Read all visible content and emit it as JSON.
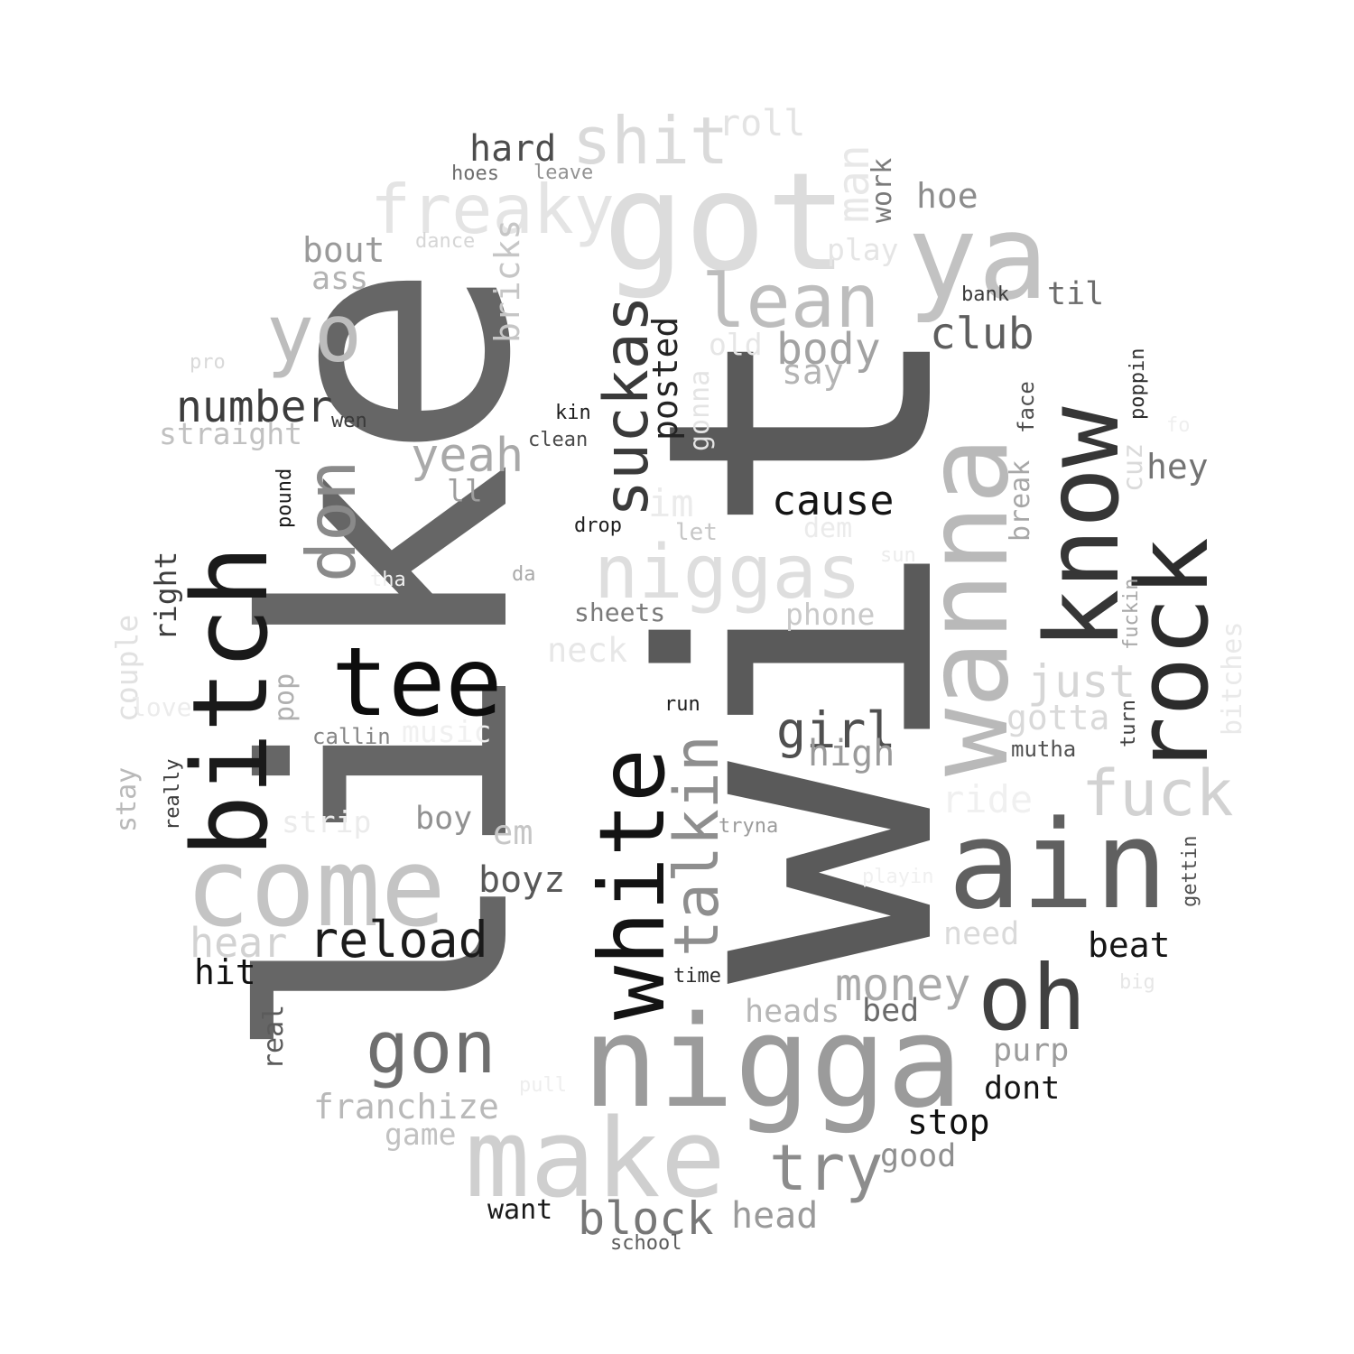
{
  "words": [
    {
      "text": "like",
      "color": "#666666"
    },
    {
      "text": "wit",
      "color": "#5a5a5a"
    },
    {
      "text": "got",
      "color": "#dcdcdc"
    },
    {
      "text": "ya",
      "color": "#c2c2c2"
    },
    {
      "text": "wanna",
      "color": "#b9b9b9"
    },
    {
      "text": "know",
      "color": "#363636"
    },
    {
      "text": "rock",
      "color": "#2c2c2c"
    },
    {
      "text": "ain",
      "color": "#606060"
    },
    {
      "text": "nigga",
      "color": "#9b9b9b"
    },
    {
      "text": "make",
      "color": "#cfcfcf"
    },
    {
      "text": "come",
      "color": "#c4c4c4"
    },
    {
      "text": "bitch",
      "color": "#1a1a1a"
    },
    {
      "text": "white",
      "color": "#131313"
    },
    {
      "text": "tee",
      "color": "#0d0d0d"
    },
    {
      "text": "niggas",
      "color": "#dedede"
    },
    {
      "text": "freaky",
      "color": "#e4e4e4"
    },
    {
      "text": "shit",
      "color": "#dadada"
    },
    {
      "text": "lean",
      "color": "#bdbdbd"
    },
    {
      "text": "yo",
      "color": "#bdbdbd"
    },
    {
      "text": "don",
      "color": "#8a8a8a"
    },
    {
      "text": "suckas",
      "color": "#3a3a3a"
    },
    {
      "text": "oh",
      "color": "#414141"
    },
    {
      "text": "fuck",
      "color": "#d2d2d2"
    },
    {
      "text": "gon",
      "color": "#6e6e6e"
    },
    {
      "text": "talkin",
      "color": "#8e8e8e"
    },
    {
      "text": "reload",
      "color": "#1b1b1b"
    },
    {
      "text": "try",
      "color": "#8c8c8c"
    },
    {
      "text": "block",
      "color": "#777777"
    },
    {
      "text": "number",
      "color": "#3c3c3c"
    },
    {
      "text": "cause",
      "color": "#141414"
    },
    {
      "text": "club",
      "color": "#5e5e5e"
    },
    {
      "text": "body",
      "color": "#a2a2a2"
    },
    {
      "text": "yeah",
      "color": "#a9a9a9"
    },
    {
      "text": "girl",
      "color": "#4f4f4f"
    },
    {
      "text": "money",
      "color": "#a9a9a9"
    },
    {
      "text": "just",
      "color": "#d6d6d6"
    },
    {
      "text": "hard",
      "color": "#4c4c4c"
    },
    {
      "text": "roll",
      "color": "#e3e3e3"
    },
    {
      "text": "man",
      "color": "#e8e8e8"
    },
    {
      "text": "work",
      "color": "#7a7a7a"
    },
    {
      "text": "hoe",
      "color": "#8c8c8c"
    },
    {
      "text": "bout",
      "color": "#9a9a9a"
    },
    {
      "text": "ass",
      "color": "#b3b3b3"
    },
    {
      "text": "play",
      "color": "#e5e5e5"
    },
    {
      "text": "bricks",
      "color": "#c6c6c6"
    },
    {
      "text": "posted",
      "color": "#242424"
    },
    {
      "text": "til",
      "color": "#6c6c6c"
    },
    {
      "text": "bank",
      "color": "#3b3b3b"
    },
    {
      "text": "old",
      "color": "#e6e6e6"
    },
    {
      "text": "say",
      "color": "#b4b4b4"
    },
    {
      "text": "gonna",
      "color": "#e4e4e4"
    },
    {
      "text": "poppin",
      "color": "#2d2d2d"
    },
    {
      "text": "face",
      "color": "#4d4d4d"
    },
    {
      "text": "cuz",
      "color": "#dadada"
    },
    {
      "text": "hey",
      "color": "#737373"
    },
    {
      "text": "break",
      "color": "#a7a7a7"
    },
    {
      "text": "kin",
      "color": "#1d1d1d"
    },
    {
      "text": "clean",
      "color": "#4a4a4a"
    },
    {
      "text": "wen",
      "color": "#3a3a3a"
    },
    {
      "text": "straight",
      "color": "#c1c1c1"
    },
    {
      "text": "pro",
      "color": "#d9d9d9"
    },
    {
      "text": "ll",
      "color": "#9e9e9e"
    },
    {
      "text": "im",
      "color": "#ebebeb"
    },
    {
      "text": "drop",
      "color": "#202020"
    },
    {
      "text": "let",
      "color": "#c7c7c7"
    },
    {
      "text": "dem",
      "color": "#ebebeb"
    },
    {
      "text": "pound",
      "color": "#1b1b1b"
    },
    {
      "text": "right",
      "color": "#3e3e3e"
    },
    {
      "text": "couple",
      "color": "#e1e1e1"
    },
    {
      "text": "tha",
      "color": "#f0f0f0"
    },
    {
      "text": "da",
      "color": "#aaaaaa"
    },
    {
      "text": "sun",
      "color": "#ececec"
    },
    {
      "text": "fo",
      "color": "#efefef"
    },
    {
      "text": "sheets",
      "color": "#7a7a7a"
    },
    {
      "text": "phone",
      "color": "#c9c9c9"
    },
    {
      "text": "neck",
      "color": "#e7e7e7"
    },
    {
      "text": "fuckin",
      "color": "#a7a7a7"
    },
    {
      "text": "bitches",
      "color": "#e9e9e9"
    },
    {
      "text": "turn",
      "color": "#404040"
    },
    {
      "text": "gotta",
      "color": "#d9d9d9"
    },
    {
      "text": "mutha",
      "color": "#515151"
    },
    {
      "text": "high",
      "color": "#9a9a9a"
    },
    {
      "text": "run",
      "color": "#1e1e1e"
    },
    {
      "text": "love",
      "color": "#ececec"
    },
    {
      "text": "pop",
      "color": "#b0b0b0"
    },
    {
      "text": "callin",
      "color": "#858585"
    },
    {
      "text": "music",
      "color": "#f0f0f0"
    },
    {
      "text": "stay",
      "color": "#b9b9b9"
    },
    {
      "text": "really",
      "color": "#3d3d3d"
    },
    {
      "text": "strip",
      "color": "#ebebeb"
    },
    {
      "text": "boy",
      "color": "#919191"
    },
    {
      "text": "em",
      "color": "#c6c6c6"
    },
    {
      "text": "tryna",
      "color": "#9c9c9c"
    },
    {
      "text": "ride",
      "color": "#f0f0f0"
    },
    {
      "text": "boyz",
      "color": "#585858"
    },
    {
      "text": "playin",
      "color": "#f0f0f0"
    },
    {
      "text": "gettin",
      "color": "#4f4f4f"
    },
    {
      "text": "hear",
      "color": "#d2d2d2"
    },
    {
      "text": "need",
      "color": "#dadada"
    },
    {
      "text": "beat",
      "color": "#161616"
    },
    {
      "text": "hit",
      "color": "#111111"
    },
    {
      "text": "time",
      "color": "#2b2b2b"
    },
    {
      "text": "big",
      "color": "#e6e6e6"
    },
    {
      "text": "real",
      "color": "#5b5b5b"
    },
    {
      "text": "heads",
      "color": "#b6b6b6"
    },
    {
      "text": "bed",
      "color": "#6a6a6a"
    },
    {
      "text": "purp",
      "color": "#9c9c9c"
    },
    {
      "text": "pull",
      "color": "#eeeeee"
    },
    {
      "text": "dont",
      "color": "#151515"
    },
    {
      "text": "franchize",
      "color": "#b9b9b9"
    },
    {
      "text": "stop",
      "color": "#0f0f0f"
    },
    {
      "text": "game",
      "color": "#c1c1c1"
    },
    {
      "text": "good",
      "color": "#8f8f8f"
    },
    {
      "text": "want",
      "color": "#1a1a1a"
    },
    {
      "text": "head",
      "color": "#9a9a9a"
    },
    {
      "text": "school",
      "color": "#5c5c5c"
    },
    {
      "text": "hoes",
      "color": "#6e6e6e"
    },
    {
      "text": "leave",
      "color": "#929292"
    },
    {
      "text": "dance",
      "color": "#d6d6d6"
    }
  ]
}
